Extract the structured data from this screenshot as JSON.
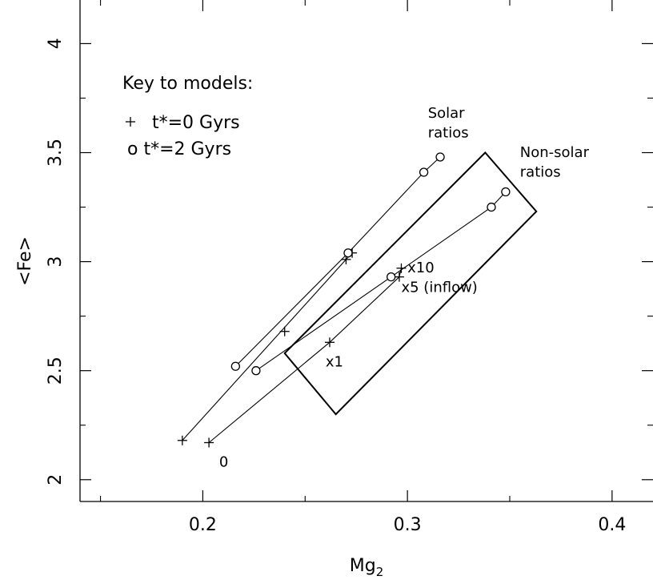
{
  "chart_data": {
    "type": "scatter",
    "xlabel": "Mg",
    "xlabel_sub": "2",
    "ylabel": "<Fe>",
    "xlim": [
      0.14,
      0.42
    ],
    "ylim": [
      1.9,
      4.2
    ],
    "xticks": [
      0.2,
      0.3,
      0.4
    ],
    "xtick_labels": [
      "0.2",
      "0.3",
      "0.4"
    ],
    "yticks": [
      2,
      2.5,
      3,
      3.5,
      4
    ],
    "ytick_labels": [
      "2",
      "2.5",
      "3",
      "3.5",
      "4"
    ],
    "xminor": [
      0.15,
      0.25,
      0.35
    ],
    "yminor": [
      2.25,
      2.75,
      3.25,
      3.75
    ],
    "grid": false,
    "legend": {
      "title": "Key to models:",
      "entries": [
        {
          "marker": "plus",
          "label": "t*=0 Gyrs"
        },
        {
          "marker": "circle",
          "label": "o t*=2 Gyrs"
        }
      ]
    },
    "series": [
      {
        "marker": "plus",
        "points": [
          [
            0.19,
            2.18
          ],
          [
            0.27,
            3.01
          ],
          [
            0.273,
            3.04
          ]
        ]
      },
      {
        "marker": "circle",
        "points": [
          [
            0.216,
            2.52
          ],
          [
            0.271,
            3.04
          ],
          [
            0.308,
            3.41
          ],
          [
            0.316,
            3.48
          ]
        ]
      },
      {
        "marker": "plus",
        "points": [
          [
            0.203,
            2.17
          ],
          [
            0.262,
            2.63
          ],
          [
            0.296,
            2.93
          ],
          [
            0.297,
            2.97
          ]
        ]
      },
      {
        "marker": "circle",
        "points": [
          [
            0.226,
            2.5
          ],
          [
            0.292,
            2.93
          ],
          [
            0.341,
            3.25
          ],
          [
            0.348,
            3.32
          ]
        ]
      },
      {
        "marker": "plus",
        "points": [
          [
            0.24,
            2.68
          ]
        ]
      }
    ],
    "regions": [
      {
        "name": "box",
        "points": [
          [
            0.24,
            2.58
          ],
          [
            0.338,
            3.5
          ],
          [
            0.363,
            3.23
          ],
          [
            0.265,
            2.3
          ]
        ]
      }
    ],
    "annotations": [
      {
        "text": "Solar",
        "x": 0.31,
        "y": 3.66
      },
      {
        "text": "ratios",
        "x": 0.31,
        "y": 3.57
      },
      {
        "text": "Non-solar",
        "x": 0.355,
        "y": 3.48
      },
      {
        "text": "ratios",
        "x": 0.355,
        "y": 3.39
      },
      {
        "text": "x10",
        "x": 0.3,
        "y": 2.95
      },
      {
        "text": "x5 (inflow)",
        "x": 0.297,
        "y": 2.86
      },
      {
        "text": "x1",
        "x": 0.26,
        "y": 2.52
      },
      {
        "text": "0",
        "x": 0.208,
        "y": 2.06
      }
    ]
  }
}
